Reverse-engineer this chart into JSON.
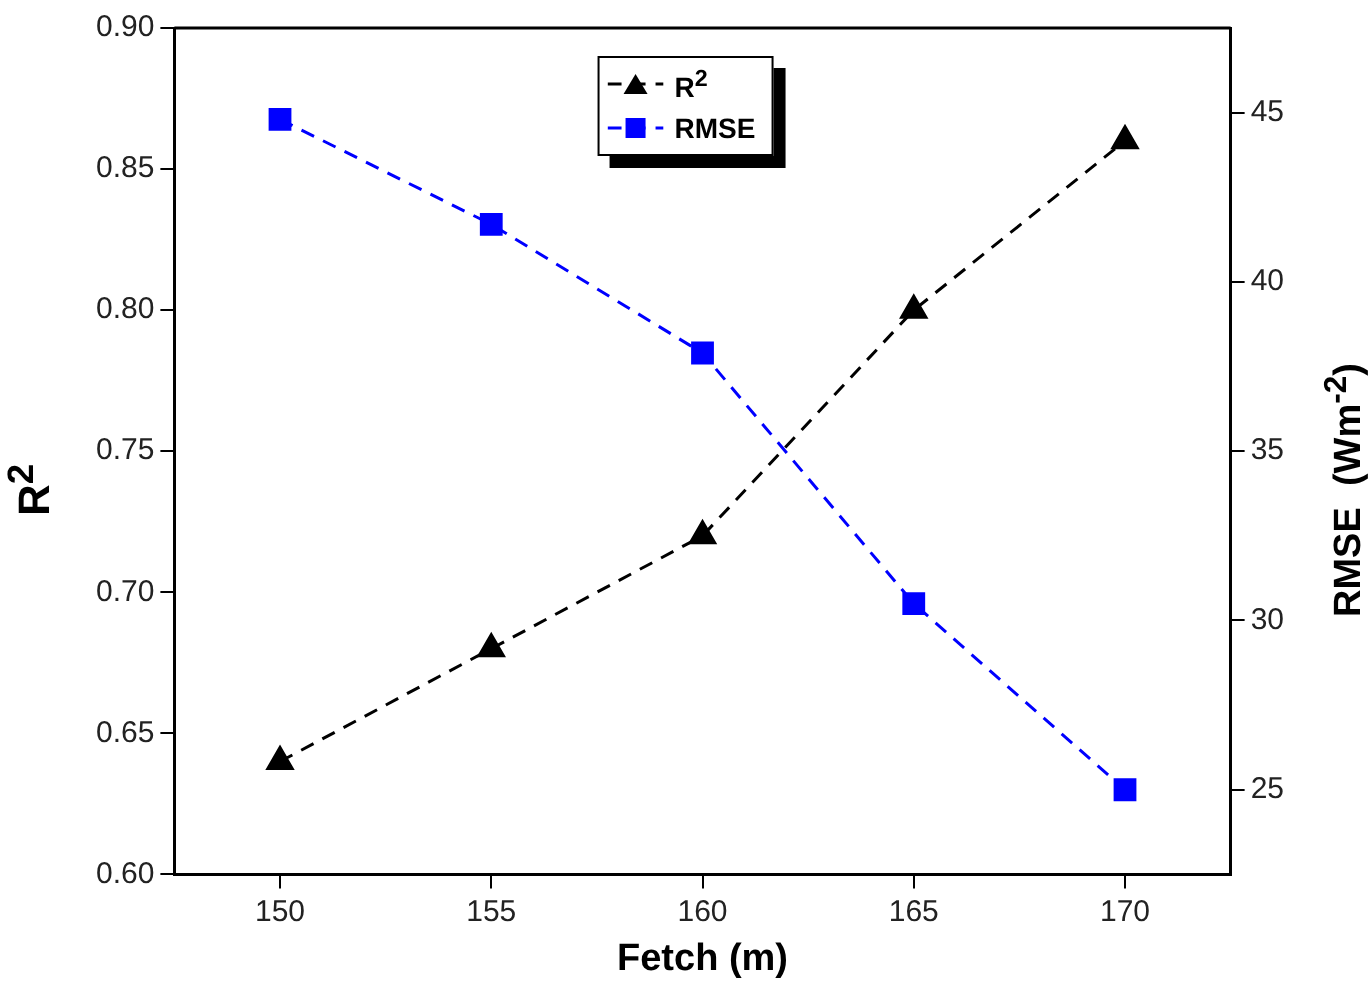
{
  "chart_data": {
    "type": "line",
    "xlabel": "Fetch (m)",
    "ylabel": "R$^{2}$",
    "y2label": "RMSE  (Wm$^{-2}$)",
    "x": [
      150,
      155,
      160,
      165,
      170
    ],
    "xlim": [
      147.5,
      172.5
    ],
    "xticks": [
      150,
      155,
      160,
      165,
      170
    ],
    "ylim": [
      0.6,
      0.9
    ],
    "yticks": [
      {
        "value": 0.6,
        "label": "0.60"
      },
      {
        "value": 0.65,
        "label": "0.65"
      },
      {
        "value": 0.7,
        "label": "0.70"
      },
      {
        "value": 0.75,
        "label": "0.75"
      },
      {
        "value": 0.8,
        "label": "0.80"
      },
      {
        "value": 0.85,
        "label": "0.85"
      },
      {
        "value": 0.9,
        "label": "0.90"
      }
    ],
    "y2lim": [
      22.5,
      47.5
    ],
    "y2ticks": [
      25,
      30,
      35,
      40,
      45
    ],
    "grid": false,
    "legend": "top",
    "line_style": "dashed",
    "series": [
      {
        "name": "R$^{2}$",
        "color": "#000000",
        "marker": "triangle",
        "values": [
          0.64,
          0.68,
          0.72,
          0.8,
          0.86
        ]
      },
      {
        "name": "RMSE",
        "color": "#0000ff",
        "marker": "square",
        "axis": "y2",
        "values": [
          44.8,
          41.7,
          37.9,
          30.5,
          25
        ]
      }
    ]
  }
}
